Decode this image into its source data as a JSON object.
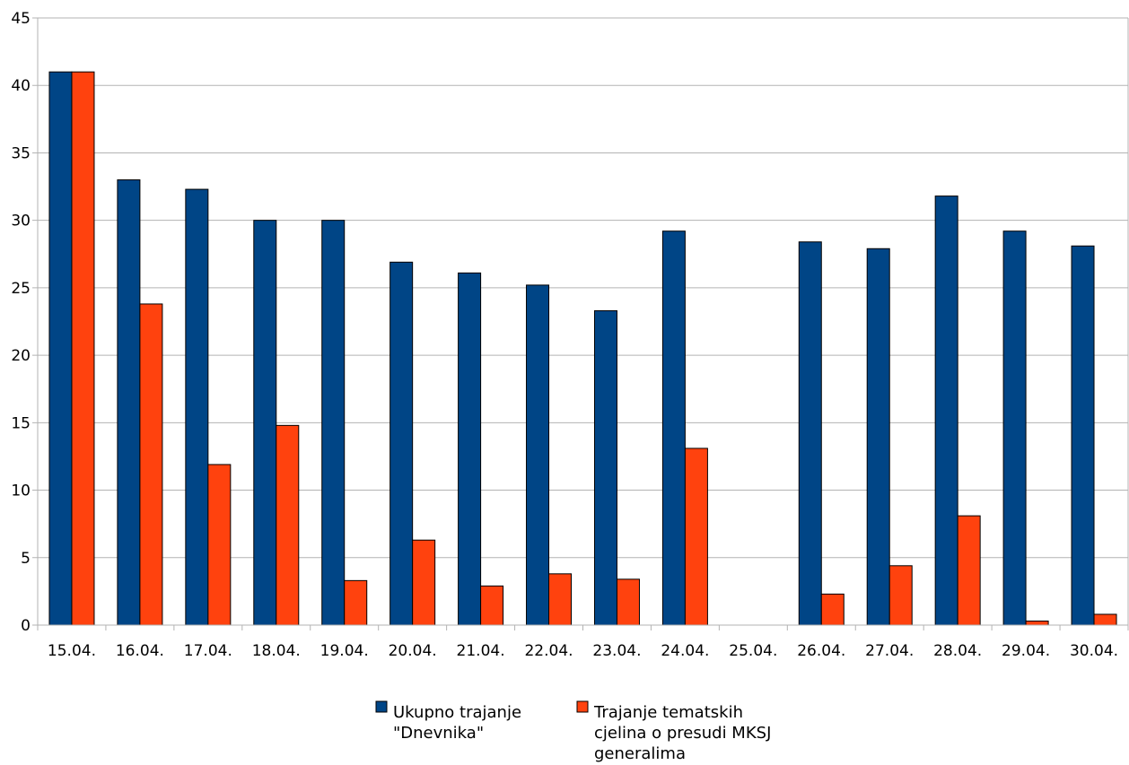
{
  "chart_data": {
    "type": "bar",
    "categories": [
      "15.04.",
      "16.04.",
      "17.04.",
      "18.04.",
      "19.04.",
      "20.04.",
      "21.04.",
      "22.04.",
      "23.04.",
      "24.04.",
      "25.04.",
      "26.04.",
      "27.04.",
      "28.04.",
      "29.04.",
      "30.04."
    ],
    "series": [
      {
        "name": "Ukupno trajanje \"Dnevnika\"",
        "legend_lines": [
          "Ukupno trajanje",
          "\"Dnevnika\""
        ],
        "color": "#004586",
        "values": [
          41,
          33,
          32.3,
          30,
          30,
          26.9,
          26.1,
          25.2,
          23.3,
          29.2,
          0,
          28.4,
          27.9,
          31.8,
          29.2,
          28.1
        ]
      },
      {
        "name": "Trajanje tematskih cjelina o presudi MKSJ generalima",
        "legend_lines": [
          "Trajanje tematskih",
          "cjelina o presudi MKSJ",
          "generalima"
        ],
        "color": "#ff420e",
        "values": [
          41,
          23.8,
          11.9,
          14.8,
          3.3,
          6.3,
          2.9,
          3.8,
          3.4,
          13.1,
          0,
          2.3,
          4.4,
          8.1,
          0.3,
          0.8
        ]
      }
    ],
    "title": "",
    "xlabel": "",
    "ylabel": "",
    "ylim": [
      0,
      45
    ],
    "yticks": [
      "0",
      "5",
      "10",
      "15",
      "20",
      "25",
      "30",
      "35",
      "40",
      "45"
    ],
    "grid": true,
    "legend_position": "bottom"
  }
}
